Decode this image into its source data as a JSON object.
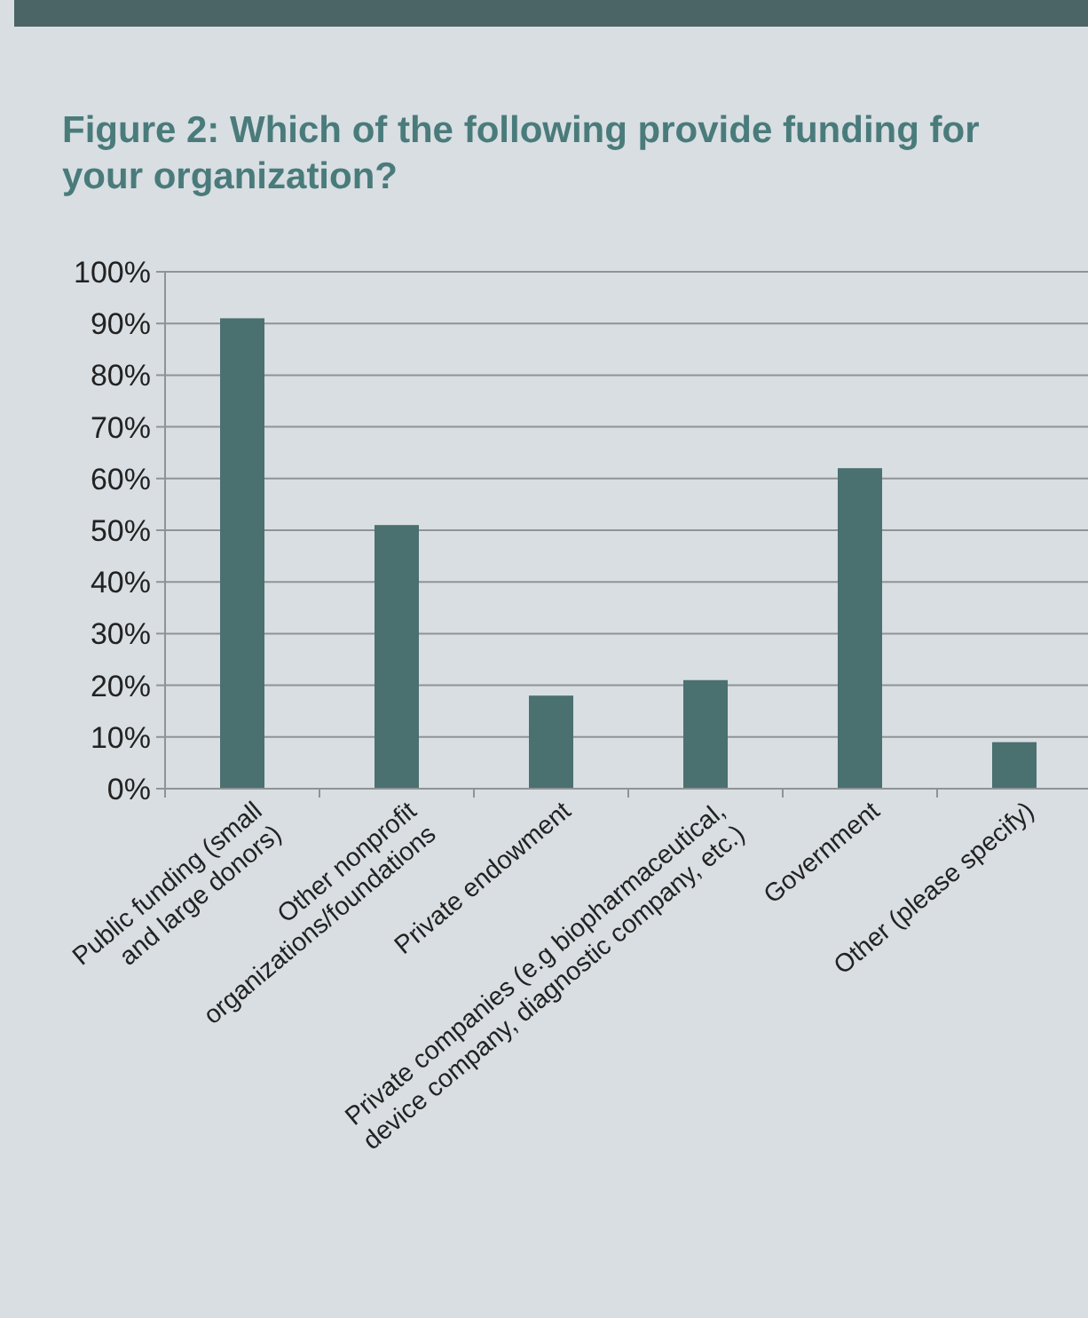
{
  "chart_data": {
    "type": "bar",
    "title": "Figure 2: Which of the following provide funding for your organization?",
    "categories": [
      "Public funding (small\nand large donors)",
      "Other nonprofit\norganizations/foundations",
      "Private endowment",
      "Private companies (e.g biopharmaceutical,\ndevice company, diagnostic company, etc.)",
      "Government",
      "Other (please specify)"
    ],
    "values": [
      91,
      51,
      18,
      21,
      62,
      9
    ],
    "color": "#4a7070",
    "ylim": [
      0,
      100
    ],
    "yticks": [
      {
        "value": 0,
        "label": "0%"
      },
      {
        "value": 10,
        "label": "10%"
      },
      {
        "value": 20,
        "label": "20%"
      },
      {
        "value": 30,
        "label": "30%"
      },
      {
        "value": 40,
        "label": "40%"
      },
      {
        "value": 50,
        "label": "50%"
      },
      {
        "value": 60,
        "label": "60%"
      },
      {
        "value": 70,
        "label": "70%"
      },
      {
        "value": 80,
        "label": "80%"
      },
      {
        "value": 90,
        "label": "90%"
      },
      {
        "value": 100,
        "label": "100%"
      }
    ],
    "grid": "y"
  }
}
